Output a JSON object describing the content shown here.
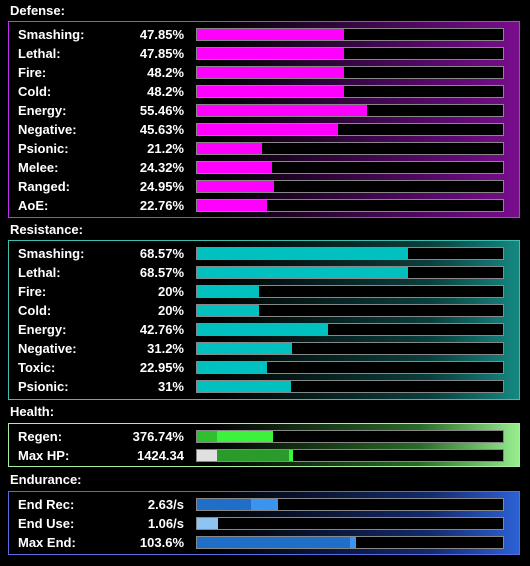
{
  "defense": {
    "title": "Defense:",
    "color": "#ff00ff",
    "items": [
      {
        "label": "Smashing:",
        "value": "47.85%",
        "fill": 0.479
      },
      {
        "label": "Lethal:",
        "value": "47.85%",
        "fill": 0.479
      },
      {
        "label": "Fire:",
        "value": "48.2%",
        "fill": 0.482
      },
      {
        "label": "Cold:",
        "value": "48.2%",
        "fill": 0.482
      },
      {
        "label": "Energy:",
        "value": "55.46%",
        "fill": 0.555
      },
      {
        "label": "Negative:",
        "value": "45.63%",
        "fill": 0.46
      },
      {
        "label": "Psionic:",
        "value": "21.2%",
        "fill": 0.212
      },
      {
        "label": "Melee:",
        "value": "24.32%",
        "fill": 0.246
      },
      {
        "label": "Ranged:",
        "value": "24.95%",
        "fill": 0.252
      },
      {
        "label": "AoE:",
        "value": "22.76%",
        "fill": 0.23
      }
    ]
  },
  "resistance": {
    "title": "Resistance:",
    "color": "#00c0c0",
    "items": [
      {
        "label": "Smashing:",
        "value": "68.57%",
        "fill": 0.688
      },
      {
        "label": "Lethal:",
        "value": "68.57%",
        "fill": 0.688
      },
      {
        "label": "Fire:",
        "value": "20%",
        "fill": 0.201
      },
      {
        "label": "Cold:",
        "value": "20%",
        "fill": 0.201
      },
      {
        "label": "Energy:",
        "value": "42.76%",
        "fill": 0.428
      },
      {
        "label": "Negative:",
        "value": "31.2%",
        "fill": 0.312
      },
      {
        "label": "Toxic:",
        "value": "22.95%",
        "fill": 0.23
      },
      {
        "label": "Psionic:",
        "value": "31%",
        "fill": 0.308
      }
    ]
  },
  "health": {
    "title": "Health:",
    "items": [
      {
        "label": "Regen:",
        "value": "376.74%",
        "segments": [
          {
            "start": 0.0,
            "end": 0.065,
            "color": "#2fbf2f"
          },
          {
            "start": 0.065,
            "end": 0.25,
            "color": "#3cf23c"
          }
        ]
      },
      {
        "label": "Max HP:",
        "value": "1424.34",
        "segments": [
          {
            "start": 0.0,
            "end": 0.065,
            "color": "#e0e0e0"
          },
          {
            "start": 0.065,
            "end": 0.3,
            "color": "#2a9a2a"
          },
          {
            "start": 0.3,
            "end": 0.315,
            "color": "#3cf23c"
          }
        ]
      }
    ]
  },
  "endurance": {
    "title": "Endurance:",
    "items": [
      {
        "label": "End Rec:",
        "value": "2.63/s",
        "segments": [
          {
            "start": 0.0,
            "end": 0.175,
            "color": "#1f6fc8"
          },
          {
            "start": 0.175,
            "end": 0.265,
            "color": "#3a95f0"
          }
        ]
      },
      {
        "label": "End Use:",
        "value": "1.06/s",
        "segments": [
          {
            "start": 0.0,
            "end": 0.07,
            "color": "#8ec4f4"
          }
        ]
      },
      {
        "label": "Max End:",
        "value": "103.6%",
        "segments": [
          {
            "start": 0.0,
            "end": 0.5,
            "color": "#1f6fc8"
          },
          {
            "start": 0.5,
            "end": 0.518,
            "color": "#3a95f0"
          }
        ]
      }
    ]
  }
}
